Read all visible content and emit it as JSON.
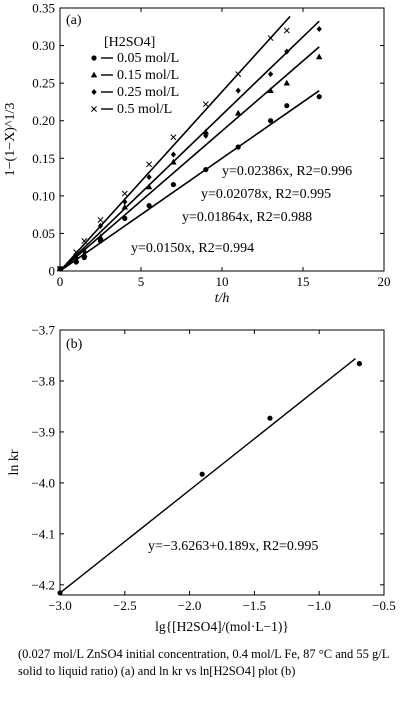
{
  "chart_data": [
    {
      "type": "scatter",
      "panel_label": "(a)",
      "xlabel": "t/h",
      "ylabel": "1−(1−X)^1/3",
      "xlim": [
        0,
        20
      ],
      "ylim": [
        0,
        0.35
      ],
      "xticks": [
        "0",
        "5",
        "10",
        "15",
        "20"
      ],
      "yticks": [
        "0",
        "0.05",
        "0.10",
        "0.15",
        "0.20",
        "0.25",
        "0.30",
        "0.35"
      ],
      "legend_title": "[H2SO4]",
      "series": [
        {
          "name": "0.05 mol/L",
          "marker": "circle",
          "x": [
            0,
            1,
            1.5,
            2.5,
            4,
            5.5,
            7,
            9,
            11,
            13,
            14,
            16
          ],
          "y": [
            0.003,
            0.012,
            0.018,
            0.04,
            0.07,
            0.087,
            0.115,
            0.135,
            0.165,
            0.2,
            0.22,
            0.232
          ],
          "fit": "y=0.0150x, R2=0.994",
          "slope": 0.015
        },
        {
          "name": "0.15 mol/L",
          "marker": "triangle",
          "x": [
            0,
            1,
            1.5,
            2.5,
            4,
            5.5,
            7,
            9,
            11,
            13,
            14,
            16
          ],
          "y": [
            0.003,
            0.015,
            0.022,
            0.045,
            0.085,
            0.112,
            0.145,
            0.185,
            0.21,
            0.24,
            0.25,
            0.285
          ],
          "fit": "y=0.01864x, R2=0.988",
          "slope": 0.01864
        },
        {
          "name": "0.25 mol/L",
          "marker": "diamond",
          "x": [
            0,
            1,
            1.5,
            2.5,
            4,
            5.5,
            7,
            9,
            11,
            13,
            14,
            16
          ],
          "y": [
            0.003,
            0.018,
            0.026,
            0.06,
            0.092,
            0.125,
            0.155,
            0.18,
            0.24,
            0.262,
            0.292,
            0.322
          ],
          "fit": "y=0.02078x, R2=0.995",
          "slope": 0.02078
        },
        {
          "name": "0.5 mol/L",
          "marker": "x",
          "x": [
            0,
            1,
            1.5,
            2.5,
            4,
            5.5,
            7,
            9,
            11,
            13,
            14
          ],
          "y": [
            0.003,
            0.025,
            0.04,
            0.068,
            0.103,
            0.142,
            0.178,
            0.222,
            0.262,
            0.31,
            0.32
          ],
          "fit": "y=0.02386x, R2=0.996",
          "slope": 0.02386
        }
      ],
      "fit_labels": [
        "y=0.02386x, R2=0.996",
        "y=0.02078x, R2=0.995",
        "y=0.01864x, R2=0.988",
        "y=0.0150x, R2=0.994"
      ]
    },
    {
      "type": "scatter",
      "panel_label": "(b)",
      "xlabel": "lg{[H2SO4]/(mol·L−1)}",
      "ylabel": "ln kr",
      "xlim": [
        -3.0,
        -0.5
      ],
      "ylim": [
        -4.22,
        -3.7
      ],
      "xticks": [
        "−3.0",
        "−2.5",
        "−2.0",
        "−1.5",
        "−1.0",
        "−0.5"
      ],
      "yticks": [
        "−4.2",
        "−4.1",
        "−4.0",
        "−3.9",
        "−3.8",
        "−3.7"
      ],
      "points": {
        "x": [
          -3.0,
          -1.903,
          -1.38,
          -0.69
        ],
        "y": [
          -4.216,
          -3.983,
          -3.873,
          -3.766
        ]
      },
      "fit": {
        "intercept": -3.6263,
        "slope": 0.189,
        "x": [
          -3.0,
          -0.72
        ],
        "label": "y=−3.6263+0.189x, R2=0.995"
      }
    }
  ],
  "caption": "(0.027 mol/L ZnSO4 initial concentration, 0.4 mol/L Fe, 87 °C and 55 g/L solid to liquid ratio) (a) and ln kr vs ln[H2SO4] plot (b)"
}
